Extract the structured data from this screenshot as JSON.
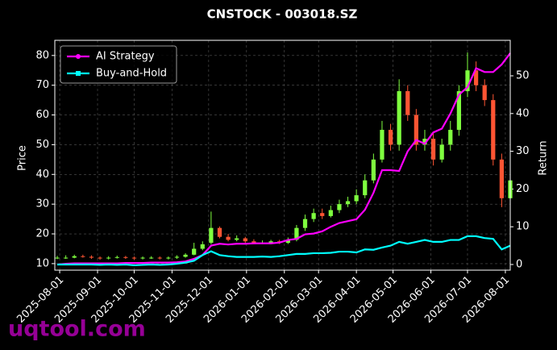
{
  "chart_data": {
    "type": "candlestick",
    "title": "CNSTOCK - 003018.SZ",
    "ylabel": "Price",
    "y2label": "Return",
    "x": [
      "2025-07-30",
      "2025-08-06",
      "2025-08-13",
      "2025-08-20",
      "2025-08-27",
      "2025-09-03",
      "2025-09-10",
      "2025-09-17",
      "2025-09-24",
      "2025-10-01",
      "2025-10-08",
      "2025-10-15",
      "2025-10-22",
      "2025-10-29",
      "2025-11-05",
      "2025-11-12",
      "2025-11-19",
      "2025-11-26",
      "2025-12-03",
      "2025-12-10",
      "2025-12-17",
      "2025-12-24",
      "2025-12-31",
      "2026-01-07",
      "2026-01-14",
      "2026-01-21",
      "2026-01-28",
      "2026-02-04",
      "2026-02-11",
      "2026-02-18",
      "2026-02-25",
      "2026-03-04",
      "2026-03-11",
      "2026-03-18",
      "2026-03-25",
      "2026-04-01",
      "2026-04-08",
      "2026-04-15",
      "2026-04-22",
      "2026-04-29",
      "2026-05-06",
      "2026-05-13",
      "2026-05-20",
      "2026-05-27",
      "2026-06-03",
      "2026-06-10",
      "2026-06-17",
      "2026-06-24",
      "2026-07-01",
      "2026-07-08",
      "2026-07-15",
      "2026-07-22",
      "2026-07-29",
      "2026-08-05"
    ],
    "open": [
      12,
      12,
      12,
      12.5,
      12.3,
      12,
      11.8,
      12,
      12.2,
      12,
      11.8,
      12,
      12,
      11.8,
      12,
      12.3,
      13,
      15,
      17,
      22,
      19,
      18,
      18.5,
      17.5,
      17,
      17,
      17.5,
      17,
      18,
      22,
      25,
      27,
      26,
      28,
      30,
      31,
      33,
      38,
      45,
      55,
      50,
      68,
      60,
      50,
      52,
      45,
      50,
      55,
      68,
      75,
      70,
      65,
      45,
      32
    ],
    "close": [
      12,
      12,
      12.5,
      12.3,
      12,
      11.8,
      12,
      12.2,
      12,
      11.8,
      12,
      12,
      11.8,
      12,
      12.3,
      13,
      15,
      16.5,
      22,
      19,
      18,
      18.5,
      17.5,
      17,
      17,
      17.5,
      17,
      18,
      22,
      25,
      27,
      26,
      28,
      30,
      31,
      33,
      38,
      45,
      55,
      50,
      68,
      60,
      50,
      52,
      45,
      50,
      55,
      68,
      75,
      70,
      65,
      45,
      32,
      38
    ],
    "high": [
      12.6,
      12.8,
      13,
      13,
      12.8,
      12.4,
      12.5,
      12.7,
      12.6,
      12.4,
      12.4,
      12.5,
      12.4,
      12.4,
      12.8,
      13.5,
      17,
      17.5,
      27.5,
      22.5,
      20,
      19.5,
      19,
      18.2,
      17.8,
      18,
      18,
      18.8,
      23,
      26.5,
      28.5,
      28.5,
      29.5,
      31.5,
      32.5,
      35,
      40,
      47,
      58,
      57,
      72,
      70,
      62,
      55,
      54,
      52,
      58,
      70,
      81,
      78,
      72,
      67,
      47,
      40
    ],
    "low": [
      11.5,
      11.6,
      11.8,
      12,
      11.6,
      11.3,
      11.4,
      11.7,
      11.6,
      11.3,
      11.4,
      11.6,
      11.4,
      11.4,
      11.6,
      12,
      12.8,
      14.5,
      16.5,
      18.5,
      17.5,
      17.5,
      17,
      16.8,
      16.6,
      16.5,
      16.6,
      16.6,
      17.5,
      21,
      24,
      25,
      25.5,
      27,
      29,
      30,
      32,
      37,
      44,
      48,
      48,
      58,
      48,
      48,
      43,
      44,
      48,
      53,
      66,
      68,
      63,
      43,
      29,
      30
    ],
    "up_color": "#7fff3f",
    "down_color": "#ff5533",
    "series": [
      {
        "name": "AI Strategy",
        "color": "#ff00ff",
        "axis": "y2",
        "marker": "circle",
        "values": [
          0,
          0.2,
          0.3,
          0.3,
          0.3,
          0.3,
          0.3,
          0.3,
          0.4,
          0.4,
          0.4,
          0.5,
          0.5,
          0.5,
          0.6,
          0.8,
          1.5,
          2.5,
          5,
          5.5,
          5.3,
          5.5,
          5.5,
          5.6,
          5.6,
          5.6,
          5.8,
          6.5,
          6.8,
          8,
          8.2,
          8.8,
          10,
          11,
          11.5,
          12,
          14.5,
          19,
          25,
          25,
          24.8,
          30,
          33,
          32,
          35,
          36,
          40,
          45,
          47,
          52,
          51,
          51,
          53,
          56
        ]
      },
      {
        "name": "Buy-and-Hold",
        "color": "#00ffff",
        "axis": "y2",
        "marker": "square",
        "values": [
          0,
          0,
          0,
          0,
          0,
          -0.1,
          0,
          -0.1,
          0,
          -0.2,
          -0.1,
          0,
          -0.1,
          0,
          0.2,
          0.5,
          1,
          2.5,
          3.5,
          2.5,
          2.2,
          2,
          2,
          2,
          2.1,
          2,
          2.2,
          2.5,
          2.8,
          2.8,
          3,
          3,
          3.1,
          3.4,
          3.4,
          3.2,
          4,
          3.9,
          4.5,
          5,
          6,
          5.5,
          6,
          6.5,
          6,
          6,
          6.5,
          6.5,
          7.5,
          7.5,
          7,
          6.8,
          4,
          5
        ]
      }
    ],
    "xlim": [
      "2025-07-28",
      "2026-08-05"
    ],
    "xticks": [
      "2025-08-01",
      "2025-09-01",
      "2025-10-01",
      "2025-11-01",
      "2025-12-01",
      "2026-01-01",
      "2026-02-01",
      "2026-03-01",
      "2026-04-01",
      "2026-05-01",
      "2026-06-01",
      "2026-07-01",
      "2026-08-01"
    ],
    "ylim": [
      7.8,
      85.1
    ],
    "yticks": [
      10,
      20,
      30,
      40,
      50,
      60,
      70,
      80
    ],
    "y2lim": [
      -1.5,
      59.4
    ],
    "y2ticks": [
      0,
      10,
      20,
      30,
      40,
      50
    ],
    "grid": true,
    "legend": "upper left"
  },
  "watermark": "uqtool.com"
}
